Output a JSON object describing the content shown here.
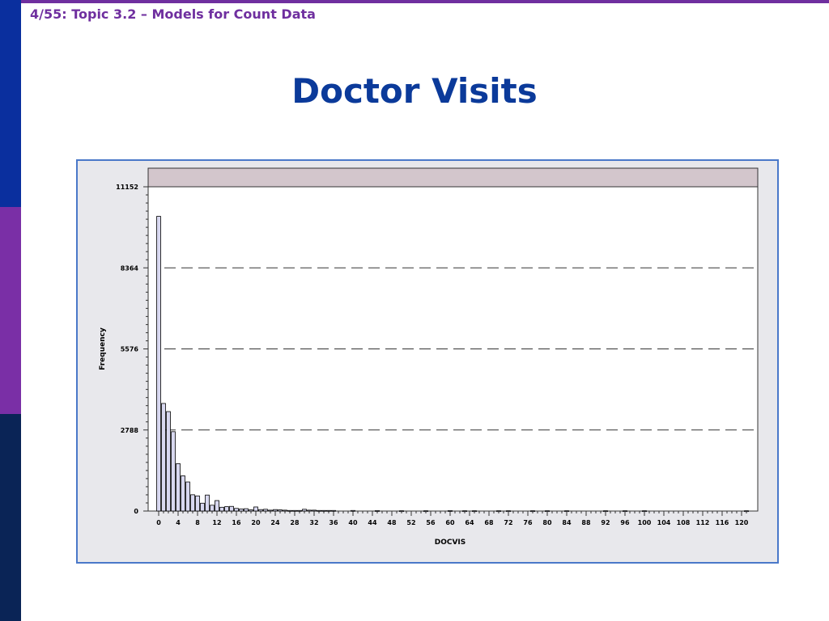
{
  "header": {
    "text": "4/55: Topic 3.2 – Models for Count Data"
  },
  "slide": {
    "title": "Doctor Visits"
  },
  "colors": {
    "top_bar": "#6f2f9f",
    "side_top": "#0a2f9e",
    "side_mid": "#7a2fa6",
    "side_bottom": "#0a2456",
    "title": "#0b3a9a",
    "bar_fill": "#d8d8f0",
    "header_band": "#d3c6cc"
  },
  "chart_data": {
    "type": "bar",
    "xlabel": "DOCVIS",
    "ylabel": "Frequency",
    "ylim": [
      0,
      11152
    ],
    "yticks": [
      "0",
      "2788",
      "5576",
      "8364",
      "11152"
    ],
    "ytick_values": [
      0,
      2788,
      5576,
      8364,
      11152
    ],
    "xlim": [
      0,
      121
    ],
    "xticks": [
      "0",
      "4",
      "8",
      "12",
      "16",
      "20",
      "24",
      "28",
      "32",
      "36",
      "40",
      "44",
      "48",
      "52",
      "56",
      "60",
      "64",
      "68",
      "72",
      "76",
      "80",
      "84",
      "88",
      "92",
      "96",
      "100",
      "104",
      "108",
      "112",
      "116",
      "120"
    ],
    "xtick_values": [
      0,
      4,
      8,
      12,
      16,
      20,
      24,
      28,
      32,
      36,
      40,
      44,
      48,
      52,
      56,
      60,
      64,
      68,
      72,
      76,
      80,
      84,
      88,
      92,
      96,
      100,
      104,
      108,
      112,
      116,
      120
    ],
    "grid": "dashed horizontal",
    "x": [
      0,
      1,
      2,
      3,
      4,
      5,
      6,
      7,
      8,
      9,
      10,
      11,
      12,
      13,
      14,
      15,
      16,
      17,
      18,
      19,
      20,
      21,
      22,
      23,
      24,
      25,
      26,
      27,
      28,
      29,
      30,
      31,
      32,
      33,
      34,
      35,
      36,
      40,
      45,
      50,
      55,
      60,
      63,
      65,
      70,
      72,
      77,
      80,
      84,
      92,
      96,
      100,
      121
    ],
    "values": [
      10135,
      3700,
      3420,
      2730,
      1630,
      1210,
      1000,
      560,
      520,
      270,
      550,
      200,
      360,
      130,
      150,
      160,
      90,
      70,
      80,
      40,
      140,
      50,
      60,
      30,
      50,
      40,
      30,
      20,
      20,
      20,
      60,
      30,
      30,
      20,
      20,
      20,
      20,
      20,
      15,
      10,
      10,
      15,
      10,
      10,
      10,
      10,
      10,
      10,
      10,
      10,
      10,
      10,
      10
    ]
  }
}
